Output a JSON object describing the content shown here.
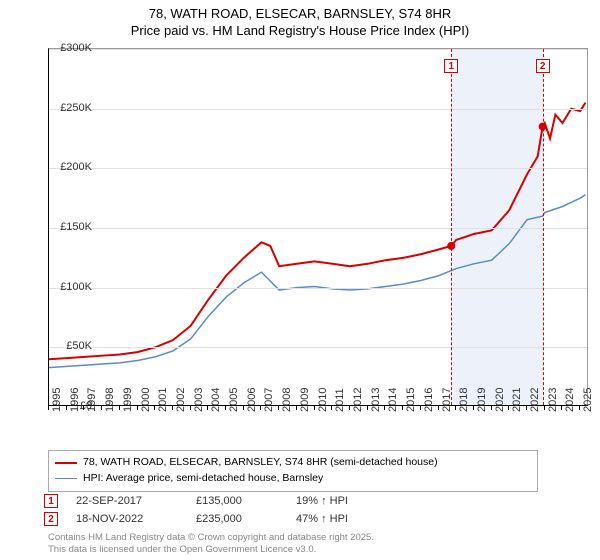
{
  "title_line1": "78, WATH ROAD, ELSECAR, BARNSLEY, S74 8HR",
  "title_line2": "Price paid vs. HM Land Registry's House Price Index (HPI)",
  "chart": {
    "type": "line",
    "background_color": "#ffffff",
    "grid_color": "#e0e0e0",
    "axis_color": "#000000",
    "plot_border_color": "#999999",
    "x_range": [
      1995,
      2025.5
    ],
    "y_range": [
      0,
      300000
    ],
    "y_ticks": [
      0,
      50000,
      100000,
      150000,
      200000,
      250000,
      300000
    ],
    "y_tick_labels": [
      "£0",
      "£50K",
      "£100K",
      "£150K",
      "£200K",
      "£250K",
      "£300K"
    ],
    "x_ticks": [
      1995,
      1996,
      1997,
      1998,
      1999,
      2000,
      2001,
      2002,
      2003,
      2004,
      2005,
      2006,
      2007,
      2008,
      2009,
      2010,
      2011,
      2012,
      2013,
      2014,
      2015,
      2016,
      2017,
      2018,
      2019,
      2020,
      2021,
      2022,
      2023,
      2024,
      2025
    ],
    "highlight_band": {
      "x_from": 2017.72,
      "x_to": 2022.88,
      "color": "#e5edf8"
    },
    "label_fontsize": 11,
    "title_fontsize": 13,
    "series": [
      {
        "name": "78, WATH ROAD, ELSECAR, BARNSLEY, S74 8HR (semi-detached house)",
        "color": "#d60000",
        "line_width": 2,
        "dot_color": "#d60000",
        "sale_markers": [
          {
            "x": 2017.72,
            "y": 135000
          },
          {
            "x": 2022.88,
            "y": 235000
          }
        ],
        "data": [
          [
            1995,
            40000
          ],
          [
            1996,
            41000
          ],
          [
            1997,
            42000
          ],
          [
            1998,
            43000
          ],
          [
            1999,
            44000
          ],
          [
            2000,
            46000
          ],
          [
            2001,
            50000
          ],
          [
            2002,
            56000
          ],
          [
            2003,
            68000
          ],
          [
            2004,
            90000
          ],
          [
            2005,
            110000
          ],
          [
            2006,
            125000
          ],
          [
            2007,
            138000
          ],
          [
            2007.5,
            135000
          ],
          [
            2008,
            118000
          ],
          [
            2009,
            120000
          ],
          [
            2010,
            122000
          ],
          [
            2011,
            120000
          ],
          [
            2012,
            118000
          ],
          [
            2013,
            120000
          ],
          [
            2014,
            123000
          ],
          [
            2015,
            125000
          ],
          [
            2016,
            128000
          ],
          [
            2017,
            132000
          ],
          [
            2017.72,
            135000
          ],
          [
            2018,
            140000
          ],
          [
            2019,
            145000
          ],
          [
            2020,
            148000
          ],
          [
            2021,
            165000
          ],
          [
            2022,
            195000
          ],
          [
            2022.6,
            210000
          ],
          [
            2022.88,
            235000
          ],
          [
            2023,
            238000
          ],
          [
            2023.3,
            225000
          ],
          [
            2023.6,
            245000
          ],
          [
            2024,
            238000
          ],
          [
            2024.5,
            250000
          ],
          [
            2025,
            248000
          ],
          [
            2025.3,
            255000
          ]
        ]
      },
      {
        "name": "HPI: Average price, semi-detached house, Barnsley",
        "color": "#5b8bc9",
        "line_width": 1.5,
        "data": [
          [
            1995,
            33000
          ],
          [
            1996,
            34000
          ],
          [
            1997,
            35000
          ],
          [
            1998,
            36000
          ],
          [
            1999,
            37000
          ],
          [
            2000,
            39000
          ],
          [
            2001,
            42000
          ],
          [
            2002,
            47000
          ],
          [
            2003,
            57000
          ],
          [
            2004,
            76000
          ],
          [
            2005,
            92000
          ],
          [
            2006,
            104000
          ],
          [
            2007,
            113000
          ],
          [
            2008,
            98000
          ],
          [
            2009,
            100000
          ],
          [
            2010,
            101000
          ],
          [
            2011,
            99000
          ],
          [
            2012,
            98000
          ],
          [
            2013,
            99000
          ],
          [
            2014,
            101000
          ],
          [
            2015,
            103000
          ],
          [
            2016,
            106000
          ],
          [
            2017,
            110000
          ],
          [
            2018,
            116000
          ],
          [
            2019,
            120000
          ],
          [
            2020,
            123000
          ],
          [
            2021,
            137000
          ],
          [
            2022,
            157000
          ],
          [
            2022.88,
            160000
          ],
          [
            2023,
            163000
          ],
          [
            2024,
            168000
          ],
          [
            2025,
            175000
          ],
          [
            2025.3,
            178000
          ]
        ]
      }
    ],
    "marker_lines": [
      {
        "id": "1",
        "x": 2017.72,
        "color": "#d60000"
      },
      {
        "id": "2",
        "x": 2022.88,
        "color": "#d60000"
      }
    ]
  },
  "legend": {
    "items": [
      {
        "color": "#d60000",
        "width": 2,
        "label": "78, WATH ROAD, ELSECAR, BARNSLEY, S74 8HR (semi-detached house)"
      },
      {
        "color": "#5b8bc9",
        "width": 1.5,
        "label": "HPI: Average price, semi-detached house, Barnsley"
      }
    ]
  },
  "marker_table": [
    {
      "id": "1",
      "color": "#d60000",
      "date": "22-SEP-2017",
      "price": "£135,000",
      "pct": "19% ↑ HPI"
    },
    {
      "id": "2",
      "color": "#d60000",
      "date": "18-NOV-2022",
      "price": "£235,000",
      "pct": "47% ↑ HPI"
    }
  ],
  "footer_line1": "Contains HM Land Registry data © Crown copyright and database right 2025.",
  "footer_line2": "This data is licensed under the Open Government Licence v3.0."
}
